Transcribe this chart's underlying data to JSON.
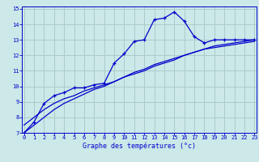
{
  "title": "Graphe des températures (°c)",
  "bg_color": "#cce8e8",
  "line_color": "#0000cc",
  "grid_color": "#aacccc",
  "hours": [
    0,
    1,
    2,
    3,
    4,
    5,
    6,
    7,
    8,
    9,
    10,
    11,
    12,
    13,
    14,
    15,
    16,
    17,
    18,
    19,
    20,
    21,
    22,
    23
  ],
  "temp_actual": [
    7.0,
    7.7,
    8.9,
    9.4,
    9.6,
    9.9,
    9.9,
    10.1,
    10.2,
    11.5,
    12.1,
    12.9,
    13.0,
    14.3,
    14.4,
    14.8,
    14.2,
    13.2,
    12.8,
    13.0,
    13.0,
    13.0,
    13.0,
    13.0
  ],
  "temp_smooth": [
    7.5,
    8.0,
    8.5,
    8.9,
    9.2,
    9.4,
    9.7,
    9.9,
    10.1,
    10.3,
    10.6,
    10.8,
    11.0,
    11.3,
    11.5,
    11.7,
    12.0,
    12.2,
    12.4,
    12.5,
    12.6,
    12.7,
    12.8,
    12.9
  ],
  "temp_smooth2": [
    7.0,
    7.5,
    8.0,
    8.5,
    8.9,
    9.2,
    9.5,
    9.8,
    10.0,
    10.3,
    10.6,
    10.9,
    11.1,
    11.4,
    11.6,
    11.8,
    12.0,
    12.2,
    12.4,
    12.6,
    12.7,
    12.8,
    12.9,
    13.0
  ],
  "ylim": [
    7,
    15
  ],
  "xlim": [
    0,
    23
  ],
  "yticks": [
    7,
    8,
    9,
    10,
    11,
    12,
    13,
    14,
    15
  ],
  "xticks": [
    0,
    1,
    2,
    3,
    4,
    5,
    6,
    7,
    8,
    9,
    10,
    11,
    12,
    13,
    14,
    15,
    16,
    17,
    18,
    19,
    20,
    21,
    22,
    23
  ],
  "tick_fontsize": 5.0,
  "xlabel_fontsize": 6.0
}
